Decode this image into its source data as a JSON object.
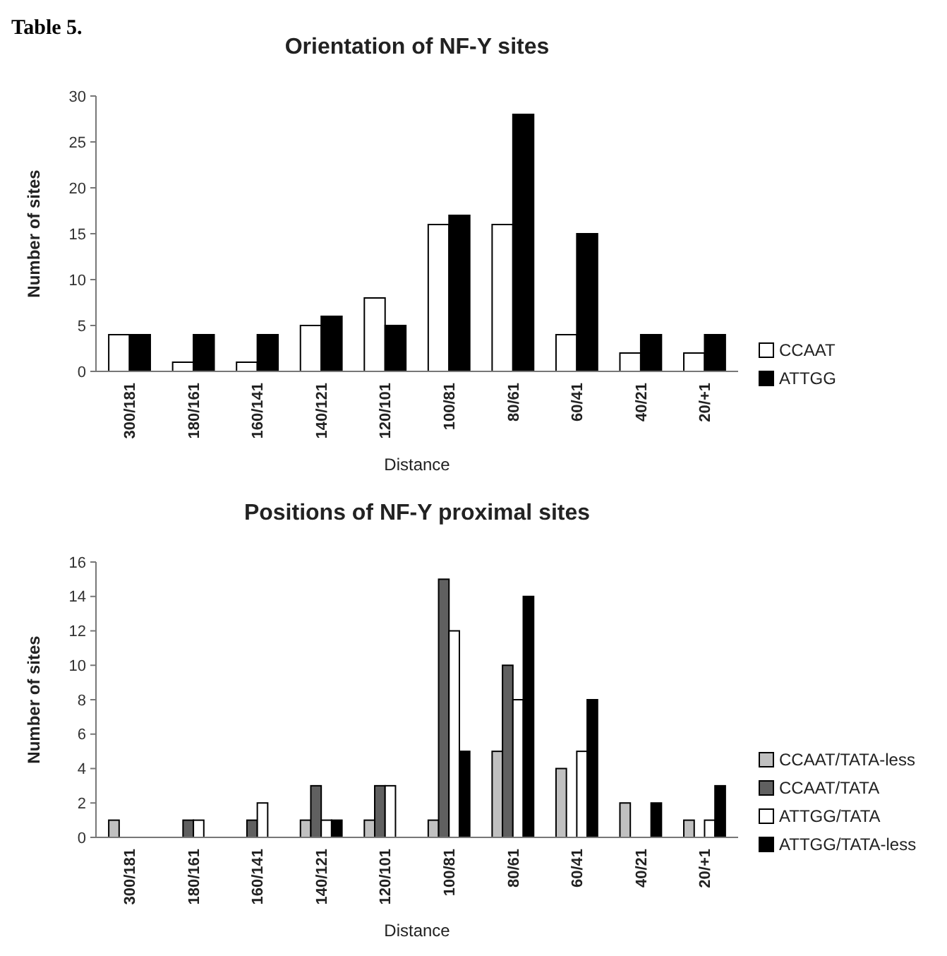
{
  "chart_data": [
    {
      "type": "bar",
      "title": "Orientation of NF-Y sites",
      "annotations": [
        "Table 5."
      ],
      "xlabel": "Distance",
      "ylabel": "Number of sites",
      "categories": [
        "300/181",
        "180/161",
        "160/141",
        "140/121",
        "120/101",
        "100/81",
        "80/61",
        "60/41",
        "40/21",
        "20/+1"
      ],
      "series": [
        {
          "name": "CCAAT",
          "color": "#ffffff",
          "values": [
            4,
            1,
            1,
            5,
            8,
            16,
            16,
            4,
            2,
            2
          ]
        },
        {
          "name": "ATTGG",
          "color": "#000000",
          "values": [
            4,
            4,
            4,
            6,
            5,
            17,
            28,
            15,
            4,
            4
          ]
        }
      ],
      "ylim": [
        0,
        30
      ],
      "yticks": [
        0,
        5,
        10,
        15,
        20,
        25,
        30
      ],
      "grid": false,
      "legend": "bottom right"
    },
    {
      "type": "bar",
      "title": "Positions of NF-Y proximal sites",
      "xlabel": "Distance",
      "ylabel": "Number of sites",
      "categories": [
        "300/181",
        "180/161",
        "160/141",
        "140/121",
        "120/101",
        "100/81",
        "80/61",
        "60/41",
        "40/21",
        "20/+1"
      ],
      "series": [
        {
          "name": "CCAAT/TATA-less",
          "color": "#c0c0c0",
          "values": [
            1,
            0,
            0,
            1,
            1,
            1,
            5,
            4,
            2,
            1
          ]
        },
        {
          "name": "CCAAT/TATA",
          "color": "#606060",
          "values": [
            0,
            1,
            1,
            3,
            3,
            15,
            10,
            0,
            0,
            0
          ]
        },
        {
          "name": "ATTGG/TATA",
          "color": "#ffffff",
          "values": [
            0,
            1,
            2,
            1,
            3,
            12,
            8,
            5,
            0,
            1
          ]
        },
        {
          "name": "ATTGG/TATA-less",
          "color": "#000000",
          "values": [
            0,
            0,
            0,
            1,
            0,
            5,
            14,
            8,
            2,
            3
          ]
        }
      ],
      "ylim": [
        0,
        16
      ],
      "yticks": [
        0,
        2,
        4,
        6,
        8,
        10,
        12,
        14,
        16
      ],
      "grid": false,
      "legend": "bottom right"
    }
  ]
}
